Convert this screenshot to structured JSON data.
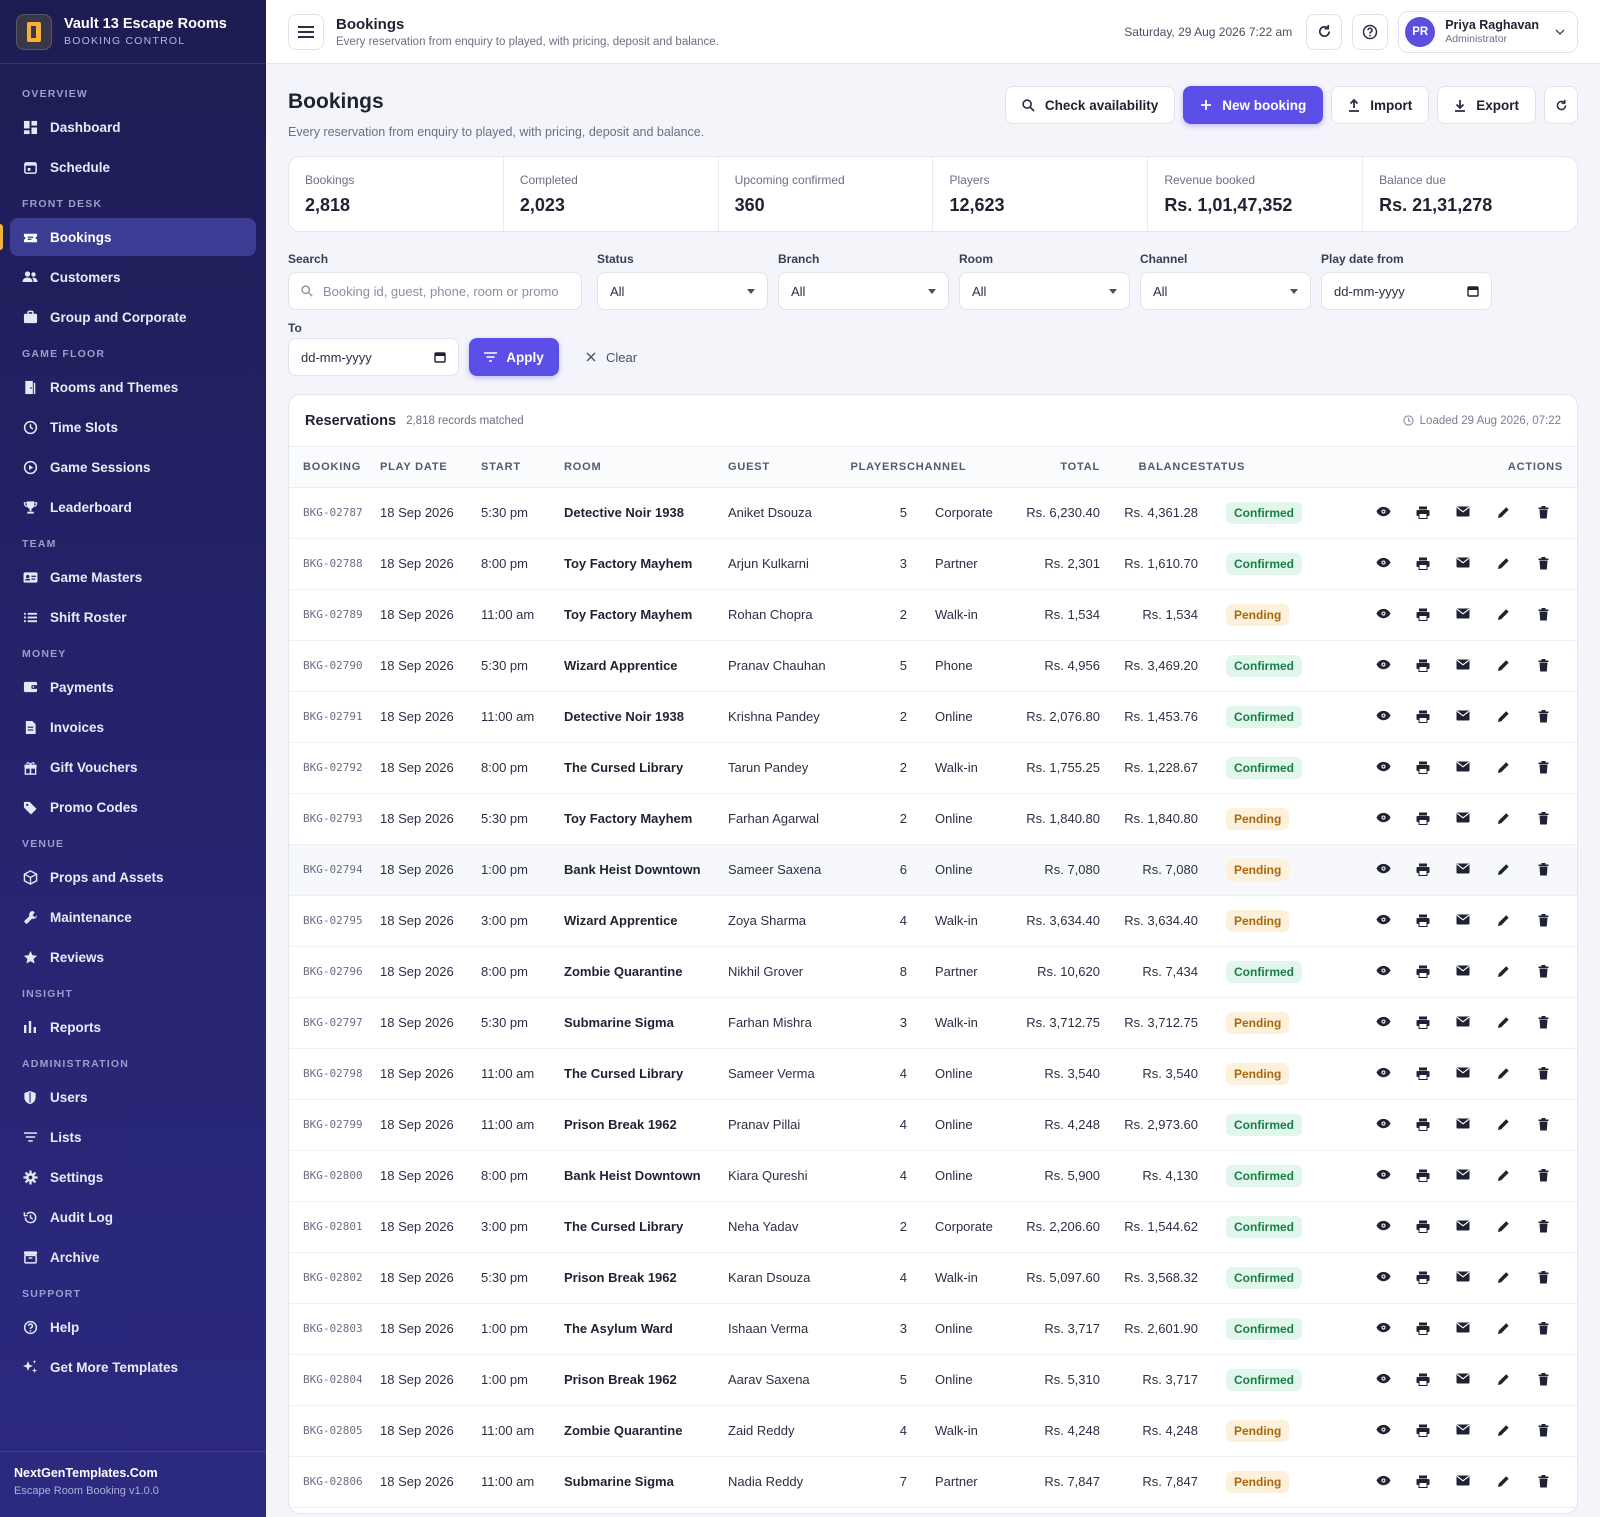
{
  "brand": {
    "name": "Vault 13 Escape Rooms",
    "subtitle": "BOOKING CONTROL"
  },
  "sidebar": {
    "sections": [
      {
        "title": "OVERVIEW",
        "items": [
          {
            "label": "Dashboard",
            "icon": "dashboard-icon"
          },
          {
            "label": "Schedule",
            "icon": "calendar-icon"
          }
        ]
      },
      {
        "title": "FRONT DESK",
        "items": [
          {
            "label": "Bookings",
            "icon": "ticket-icon",
            "active": true
          },
          {
            "label": "Customers",
            "icon": "people-icon"
          },
          {
            "label": "Group and Corporate",
            "icon": "briefcase-icon"
          }
        ]
      },
      {
        "title": "GAME FLOOR",
        "items": [
          {
            "label": "Rooms and Themes",
            "icon": "door-icon"
          },
          {
            "label": "Time Slots",
            "icon": "clock-icon"
          },
          {
            "label": "Game Sessions",
            "icon": "play-circle-icon"
          },
          {
            "label": "Leaderboard",
            "icon": "trophy-icon"
          }
        ]
      },
      {
        "title": "TEAM",
        "items": [
          {
            "label": "Game Masters",
            "icon": "id-card-icon"
          },
          {
            "label": "Shift Roster",
            "icon": "list-icon"
          }
        ]
      },
      {
        "title": "MONEY",
        "items": [
          {
            "label": "Payments",
            "icon": "wallet-icon"
          },
          {
            "label": "Invoices",
            "icon": "document-icon"
          },
          {
            "label": "Gift Vouchers",
            "icon": "gift-icon"
          },
          {
            "label": "Promo Codes",
            "icon": "tag-icon"
          }
        ]
      },
      {
        "title": "VENUE",
        "items": [
          {
            "label": "Props and Assets",
            "icon": "box-icon"
          },
          {
            "label": "Maintenance",
            "icon": "wrench-icon"
          },
          {
            "label": "Reviews",
            "icon": "star-icon"
          }
        ]
      },
      {
        "title": "INSIGHT",
        "items": [
          {
            "label": "Reports",
            "icon": "bar-chart-icon"
          }
        ]
      },
      {
        "title": "ADMINISTRATION",
        "items": [
          {
            "label": "Users",
            "icon": "shield-icon"
          },
          {
            "label": "Lists",
            "icon": "filter-list-icon"
          },
          {
            "label": "Settings",
            "icon": "gear-icon"
          },
          {
            "label": "Audit Log",
            "icon": "history-icon"
          },
          {
            "label": "Archive",
            "icon": "archive-icon"
          }
        ]
      },
      {
        "title": "SUPPORT",
        "items": [
          {
            "label": "Help",
            "icon": "help-icon"
          },
          {
            "label": "Get More Templates",
            "icon": "sparkle-icon"
          }
        ]
      }
    ],
    "footer": {
      "site": "NextGenTemplates.Com",
      "version": "Escape Room Booking v1.0.0"
    }
  },
  "topbar": {
    "title": "Bookings",
    "subtitle": "Every reservation from enquiry to played, with pricing, deposit and balance.",
    "date": "Saturday, 29 Aug 2026 7:22 am",
    "user": {
      "initials": "PR",
      "name": "Priya Raghavan",
      "role": "Administrator"
    }
  },
  "page": {
    "title": "Bookings",
    "subtitle": "Every reservation from enquiry to played, with pricing, deposit and balance.",
    "actions": {
      "check": "Check availability",
      "new": "New booking",
      "import": "Import",
      "export": "Export"
    }
  },
  "stats": [
    {
      "label": "Bookings",
      "value": "2,818"
    },
    {
      "label": "Completed",
      "value": "2,023"
    },
    {
      "label": "Upcoming confirmed",
      "value": "360"
    },
    {
      "label": "Players",
      "value": "12,623"
    },
    {
      "label": "Revenue booked",
      "value": "Rs. 1,01,47,352"
    },
    {
      "label": "Balance due",
      "value": "Rs. 21,31,278"
    }
  ],
  "filters": {
    "search_label": "Search",
    "search_placeholder": "Booking id, guest, phone, room or promo",
    "status_label": "Status",
    "status_value": "All",
    "branch_label": "Branch",
    "branch_value": "All",
    "room_label": "Room",
    "room_value": "All",
    "channel_label": "Channel",
    "channel_value": "All",
    "from_label": "Play date from",
    "from_value": "dd-mm-yyyy",
    "to_label": "To",
    "to_value": "dd-mm-yyyy",
    "apply": "Apply",
    "clear": "Clear"
  },
  "table": {
    "title": "Reservations",
    "count": "2,818 records matched",
    "loaded": "Loaded 29 Aug 2026, 07:22",
    "columns": [
      "BOOKING",
      "PLAY DATE",
      "START",
      "ROOM",
      "GUEST",
      "PLAYERS",
      "CHANNEL",
      "TOTAL",
      "BALANCE",
      "STATUS",
      "ACTIONS"
    ],
    "rows": [
      {
        "id": "BKG-02787",
        "date": "18 Sep 2026",
        "start": "5:30 pm",
        "room": "Detective Noir 1938",
        "guest": "Aniket Dsouza",
        "players": "5",
        "channel": "Corporate",
        "total": "Rs. 6,230.40",
        "balance": "Rs. 4,361.28",
        "status": "Confirmed"
      },
      {
        "id": "BKG-02788",
        "date": "18 Sep 2026",
        "start": "8:00 pm",
        "room": "Toy Factory Mayhem",
        "guest": "Arjun Kulkarni",
        "players": "3",
        "channel": "Partner",
        "total": "Rs. 2,301",
        "balance": "Rs. 1,610.70",
        "status": "Confirmed"
      },
      {
        "id": "BKG-02789",
        "date": "18 Sep 2026",
        "start": "11:00 am",
        "room": "Toy Factory Mayhem",
        "guest": "Rohan Chopra",
        "players": "2",
        "channel": "Walk-in",
        "total": "Rs. 1,534",
        "balance": "Rs. 1,534",
        "status": "Pending"
      },
      {
        "id": "BKG-02790",
        "date": "18 Sep 2026",
        "start": "5:30 pm",
        "room": "Wizard Apprentice",
        "guest": "Pranav Chauhan",
        "players": "5",
        "channel": "Phone",
        "total": "Rs. 4,956",
        "balance": "Rs. 3,469.20",
        "status": "Confirmed"
      },
      {
        "id": "BKG-02791",
        "date": "18 Sep 2026",
        "start": "11:00 am",
        "room": "Detective Noir 1938",
        "guest": "Krishna Pandey",
        "players": "2",
        "channel": "Online",
        "total": "Rs. 2,076.80",
        "balance": "Rs. 1,453.76",
        "status": "Confirmed"
      },
      {
        "id": "BKG-02792",
        "date": "18 Sep 2026",
        "start": "8:00 pm",
        "room": "The Cursed Library",
        "guest": "Tarun Pandey",
        "players": "2",
        "channel": "Walk-in",
        "total": "Rs. 1,755.25",
        "balance": "Rs. 1,228.67",
        "status": "Confirmed"
      },
      {
        "id": "BKG-02793",
        "date": "18 Sep 2026",
        "start": "5:30 pm",
        "room": "Toy Factory Mayhem",
        "guest": "Farhan Agarwal",
        "players": "2",
        "channel": "Online",
        "total": "Rs. 1,840.80",
        "balance": "Rs. 1,840.80",
        "status": "Pending"
      },
      {
        "id": "BKG-02794",
        "date": "18 Sep 2026",
        "start": "1:00 pm",
        "room": "Bank Heist Downtown",
        "guest": "Sameer Saxena",
        "players": "6",
        "channel": "Online",
        "total": "Rs. 7,080",
        "balance": "Rs. 7,080",
        "status": "Pending"
      },
      {
        "id": "BKG-02795",
        "date": "18 Sep 2026",
        "start": "3:00 pm",
        "room": "Wizard Apprentice",
        "guest": "Zoya Sharma",
        "players": "4",
        "channel": "Walk-in",
        "total": "Rs. 3,634.40",
        "balance": "Rs. 3,634.40",
        "status": "Pending"
      },
      {
        "id": "BKG-02796",
        "date": "18 Sep 2026",
        "start": "8:00 pm",
        "room": "Zombie Quarantine",
        "guest": "Nikhil Grover",
        "players": "8",
        "channel": "Partner",
        "total": "Rs. 10,620",
        "balance": "Rs. 7,434",
        "status": "Confirmed"
      },
      {
        "id": "BKG-02797",
        "date": "18 Sep 2026",
        "start": "5:30 pm",
        "room": "Submarine Sigma",
        "guest": "Farhan Mishra",
        "players": "3",
        "channel": "Walk-in",
        "total": "Rs. 3,712.75",
        "balance": "Rs. 3,712.75",
        "status": "Pending"
      },
      {
        "id": "BKG-02798",
        "date": "18 Sep 2026",
        "start": "11:00 am",
        "room": "The Cursed Library",
        "guest": "Sameer Verma",
        "players": "4",
        "channel": "Online",
        "total": "Rs. 3,540",
        "balance": "Rs. 3,540",
        "status": "Pending"
      },
      {
        "id": "BKG-02799",
        "date": "18 Sep 2026",
        "start": "11:00 am",
        "room": "Prison Break 1962",
        "guest": "Pranav Pillai",
        "players": "4",
        "channel": "Online",
        "total": "Rs. 4,248",
        "balance": "Rs. 2,973.60",
        "status": "Confirmed"
      },
      {
        "id": "BKG-02800",
        "date": "18 Sep 2026",
        "start": "8:00 pm",
        "room": "Bank Heist Downtown",
        "guest": "Kiara Qureshi",
        "players": "4",
        "channel": "Online",
        "total": "Rs. 5,900",
        "balance": "Rs. 4,130",
        "status": "Confirmed"
      },
      {
        "id": "BKG-02801",
        "date": "18 Sep 2026",
        "start": "3:00 pm",
        "room": "The Cursed Library",
        "guest": "Neha Yadav",
        "players": "2",
        "channel": "Corporate",
        "total": "Rs. 2,206.60",
        "balance": "Rs. 1,544.62",
        "status": "Confirmed"
      },
      {
        "id": "BKG-02802",
        "date": "18 Sep 2026",
        "start": "5:30 pm",
        "room": "Prison Break 1962",
        "guest": "Karan Dsouza",
        "players": "4",
        "channel": "Walk-in",
        "total": "Rs. 5,097.60",
        "balance": "Rs. 3,568.32",
        "status": "Confirmed"
      },
      {
        "id": "BKG-02803",
        "date": "18 Sep 2026",
        "start": "1:00 pm",
        "room": "The Asylum Ward",
        "guest": "Ishaan Verma",
        "players": "3",
        "channel": "Online",
        "total": "Rs. 3,717",
        "balance": "Rs. 2,601.90",
        "status": "Confirmed"
      },
      {
        "id": "BKG-02804",
        "date": "18 Sep 2026",
        "start": "1:00 pm",
        "room": "Prison Break 1962",
        "guest": "Aarav Saxena",
        "players": "5",
        "channel": "Online",
        "total": "Rs. 5,310",
        "balance": "Rs. 3,717",
        "status": "Confirmed"
      },
      {
        "id": "BKG-02805",
        "date": "18 Sep 2026",
        "start": "11:00 am",
        "room": "Zombie Quarantine",
        "guest": "Zaid Reddy",
        "players": "4",
        "channel": "Walk-in",
        "total": "Rs. 4,248",
        "balance": "Rs. 4,248",
        "status": "Pending"
      },
      {
        "id": "BKG-02806",
        "date": "18 Sep 2026",
        "start": "11:00 am",
        "room": "Submarine Sigma",
        "guest": "Nadia Reddy",
        "players": "7",
        "channel": "Partner",
        "total": "Rs. 7,847",
        "balance": "Rs. 7,847",
        "status": "Pending"
      }
    ]
  },
  "colors": {
    "sidebar": "#1d1c52",
    "accent": "#5b4fe8",
    "active_marker": "#f2b13a",
    "confirmed": "#17804a",
    "pending": "#a9670b"
  }
}
